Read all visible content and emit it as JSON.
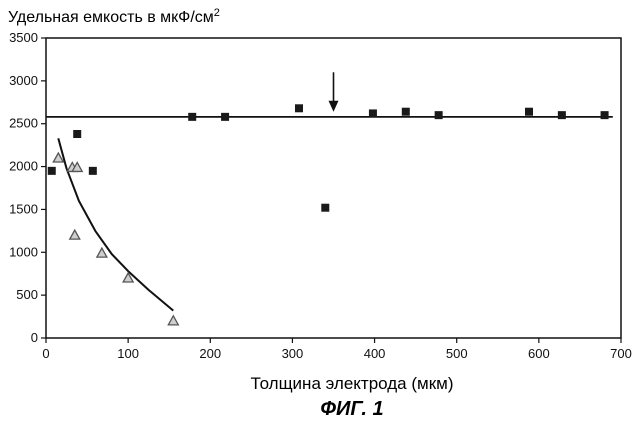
{
  "chart_data": {
    "type": "scatter",
    "title": "Удельная емкость в мкФ/см",
    "title_sup": "2",
    "xlabel": "Толщина электрода (мкм)",
    "ylabel": "",
    "caption": "ФИГ. 1",
    "xlim": [
      0,
      700
    ],
    "ylim": [
      0,
      3500
    ],
    "xticks": [
      0,
      100,
      200,
      300,
      400,
      500,
      600,
      700
    ],
    "yticks": [
      0,
      500,
      1000,
      1500,
      2000,
      2500,
      3000,
      3500
    ],
    "grid": false,
    "legend": "none",
    "series": [
      {
        "marker": "square",
        "color": "#1a1a1a",
        "points": [
          [
            7,
            1950
          ],
          [
            38,
            2380
          ],
          [
            57,
            1950
          ],
          [
            178,
            2580
          ],
          [
            218,
            2580
          ],
          [
            308,
            2680
          ],
          [
            340,
            1520
          ],
          [
            398,
            2620
          ],
          [
            438,
            2640
          ],
          [
            478,
            2600
          ],
          [
            588,
            2640
          ],
          [
            628,
            2600
          ],
          [
            680,
            2600
          ]
        ]
      },
      {
        "marker": "triangle",
        "color": "#555555",
        "points": [
          [
            15,
            2100
          ],
          [
            32,
            1990
          ],
          [
            38,
            1990
          ],
          [
            35,
            1200
          ],
          [
            68,
            990
          ],
          [
            100,
            700
          ],
          [
            155,
            200
          ]
        ]
      }
    ],
    "fits": [
      {
        "kind": "horizontal",
        "y": 2580,
        "x_range": [
          0,
          690
        ]
      },
      {
        "kind": "curve",
        "points": [
          [
            15,
            2330
          ],
          [
            25,
            1980
          ],
          [
            40,
            1600
          ],
          [
            60,
            1250
          ],
          [
            80,
            980
          ],
          [
            100,
            780
          ],
          [
            125,
            560
          ],
          [
            155,
            320
          ]
        ]
      }
    ],
    "annotation": {
      "kind": "down-arrow",
      "x": 350,
      "y_from": 3100,
      "y_to": 2640
    }
  }
}
